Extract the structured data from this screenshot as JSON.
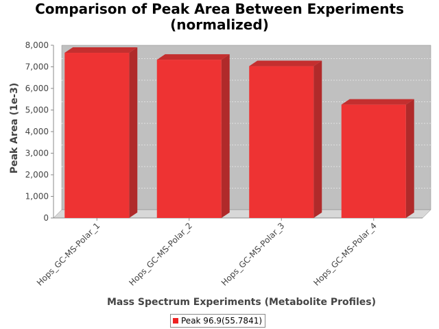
{
  "chart_data": {
    "type": "bar",
    "title_lines": [
      "Comparison of Peak Area Between Experiments",
      "(normalized)"
    ],
    "xlabel": "Mass Spectrum Experiments (Metabolite Profiles)",
    "ylabel": "Peak Area (1e-3)",
    "categories": [
      "Hops_GC-MS-Polar_1",
      "Hops_GC-MS-Polar_2",
      "Hops_GC-MS-Polar_3",
      "Hops_GC-MS-Polar_4"
    ],
    "series": [
      {
        "name": "Peak 96.9(55.7841)",
        "values": [
          7650,
          7330,
          7030,
          5250
        ],
        "color": "#ee2222"
      }
    ],
    "ylim": [
      0,
      8000
    ],
    "yticks": [
      0,
      1000,
      2000,
      3000,
      4000,
      5000,
      6000,
      7000,
      8000
    ],
    "ytick_labels": [
      "0",
      "1,000",
      "2,000",
      "3,000",
      "4,000",
      "5,000",
      "6,000",
      "7,000",
      "8,000"
    ],
    "grid": true,
    "legend_position": "bottom"
  },
  "colors": {
    "plot_background": "#c0c0c0",
    "bar_front": "#ee3333",
    "bar_side": "#b02a2a",
    "bar_top": "#c42f2f"
  }
}
